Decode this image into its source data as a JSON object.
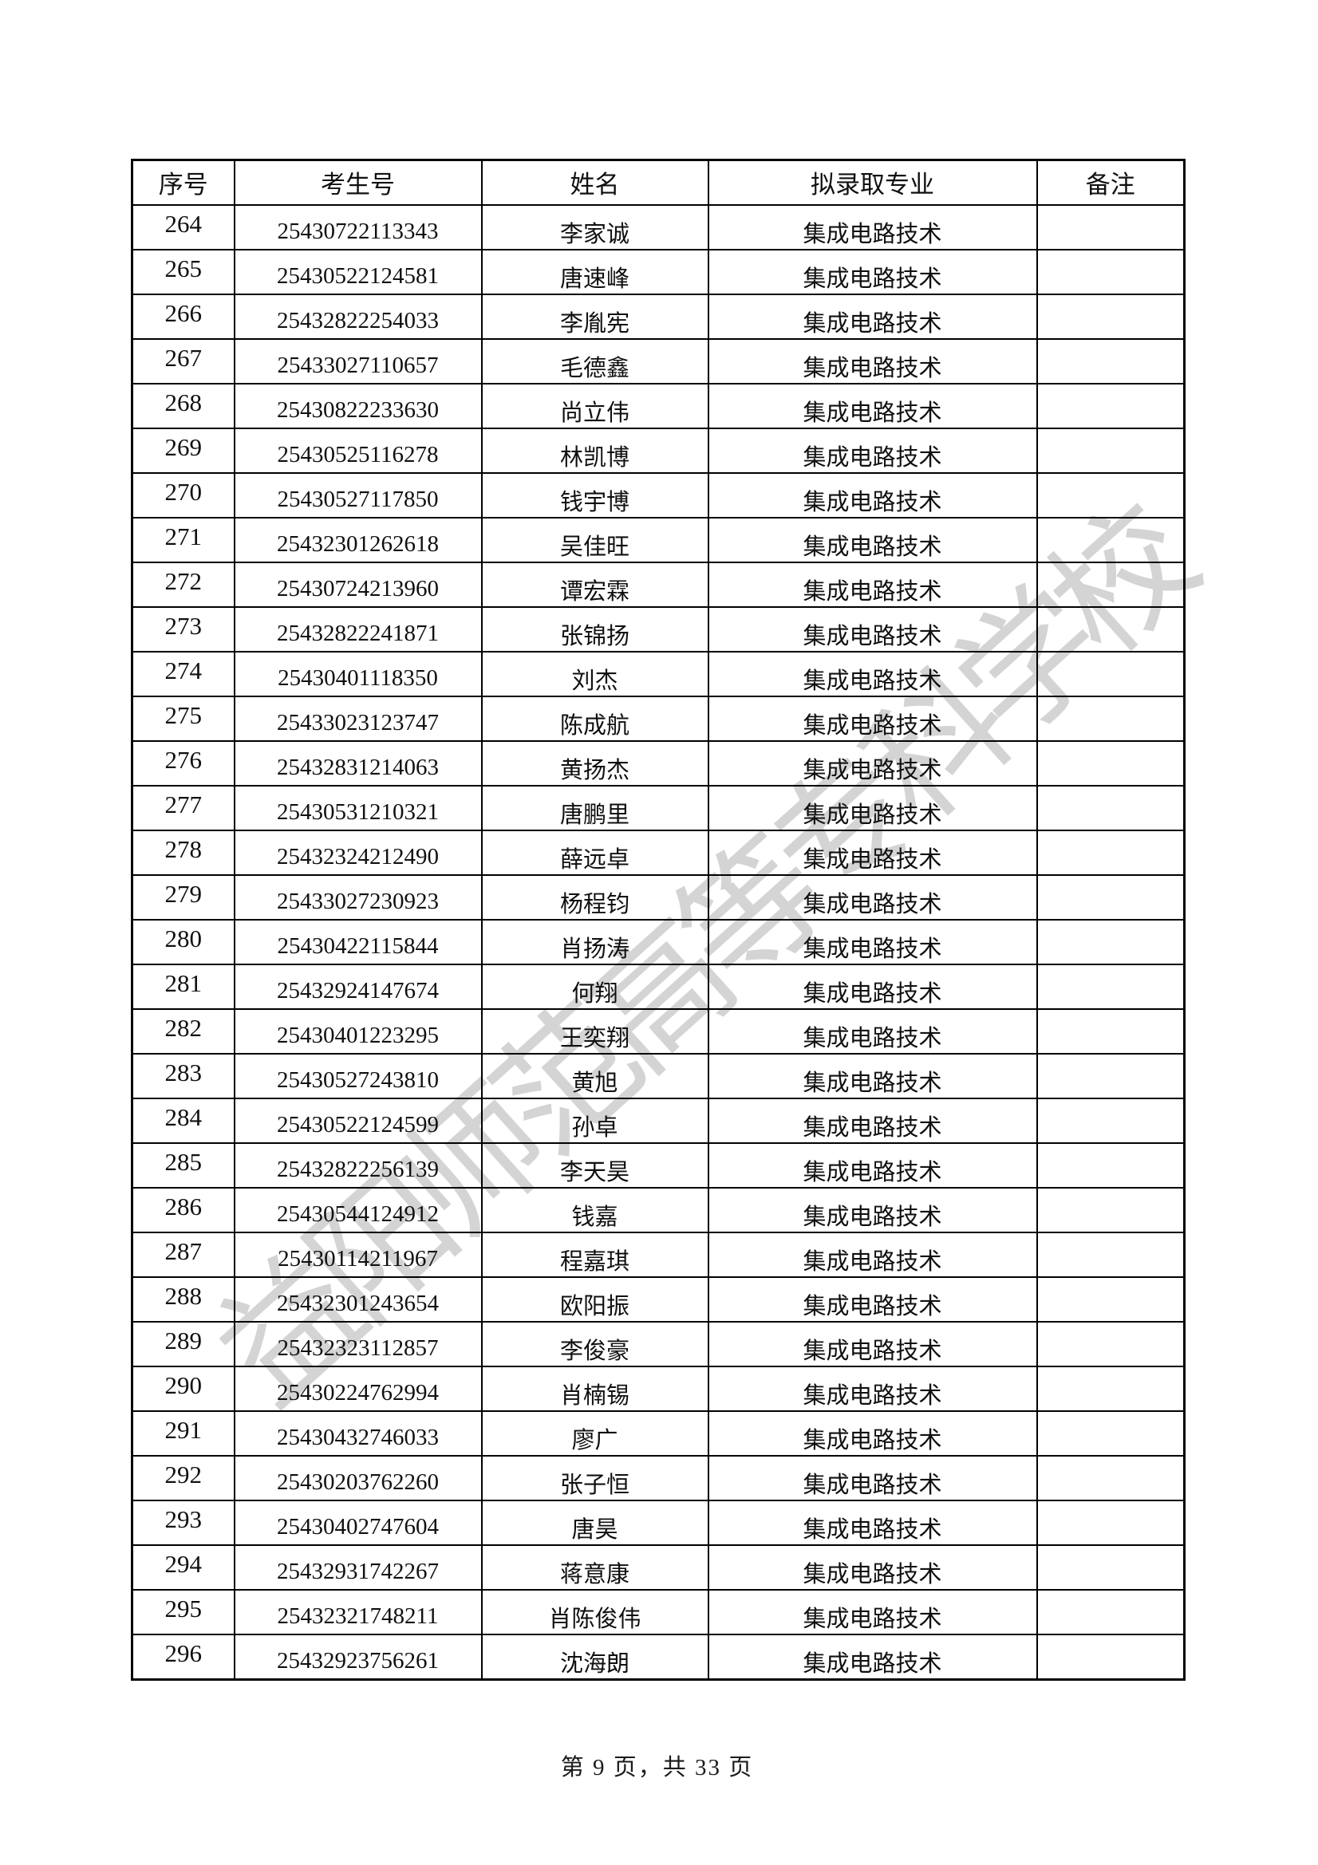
{
  "page": {
    "watermark": "益阳师范高等专科学校",
    "footer": "第 9 页，共 33 页"
  },
  "table": {
    "headers": [
      "序号",
      "考生号",
      "姓名",
      "拟录取专业",
      "备注"
    ],
    "rows": [
      {
        "no": "264",
        "id": "25430722113343",
        "name": "李家诚",
        "major": "集成电路技术",
        "note": ""
      },
      {
        "no": "265",
        "id": "25430522124581",
        "name": "唐速峰",
        "major": "集成电路技术",
        "note": ""
      },
      {
        "no": "266",
        "id": "25432822254033",
        "name": "李胤宪",
        "major": "集成电路技术",
        "note": ""
      },
      {
        "no": "267",
        "id": "25433027110657",
        "name": "毛德鑫",
        "major": "集成电路技术",
        "note": ""
      },
      {
        "no": "268",
        "id": "25430822233630",
        "name": "尚立伟",
        "major": "集成电路技术",
        "note": ""
      },
      {
        "no": "269",
        "id": "25430525116278",
        "name": "林凯博",
        "major": "集成电路技术",
        "note": ""
      },
      {
        "no": "270",
        "id": "25430527117850",
        "name": "钱宇博",
        "major": "集成电路技术",
        "note": ""
      },
      {
        "no": "271",
        "id": "25432301262618",
        "name": "吴佳旺",
        "major": "集成电路技术",
        "note": ""
      },
      {
        "no": "272",
        "id": "25430724213960",
        "name": "谭宏霖",
        "major": "集成电路技术",
        "note": ""
      },
      {
        "no": "273",
        "id": "25432822241871",
        "name": "张锦扬",
        "major": "集成电路技术",
        "note": ""
      },
      {
        "no": "274",
        "id": "25430401118350",
        "name": "刘杰",
        "major": "集成电路技术",
        "note": ""
      },
      {
        "no": "275",
        "id": "25433023123747",
        "name": "陈成航",
        "major": "集成电路技术",
        "note": ""
      },
      {
        "no": "276",
        "id": "25432831214063",
        "name": "黄扬杰",
        "major": "集成电路技术",
        "note": ""
      },
      {
        "no": "277",
        "id": "25430531210321",
        "name": "唐鹏里",
        "major": "集成电路技术",
        "note": ""
      },
      {
        "no": "278",
        "id": "25432324212490",
        "name": "薛远卓",
        "major": "集成电路技术",
        "note": ""
      },
      {
        "no": "279",
        "id": "25433027230923",
        "name": "杨程钧",
        "major": "集成电路技术",
        "note": ""
      },
      {
        "no": "280",
        "id": "25430422115844",
        "name": "肖扬涛",
        "major": "集成电路技术",
        "note": ""
      },
      {
        "no": "281",
        "id": "25432924147674",
        "name": "何翔",
        "major": "集成电路技术",
        "note": ""
      },
      {
        "no": "282",
        "id": "25430401223295",
        "name": "王奕翔",
        "major": "集成电路技术",
        "note": ""
      },
      {
        "no": "283",
        "id": "25430527243810",
        "name": "黄旭",
        "major": "集成电路技术",
        "note": ""
      },
      {
        "no": "284",
        "id": "25430522124599",
        "name": "孙卓",
        "major": "集成电路技术",
        "note": ""
      },
      {
        "no": "285",
        "id": "25432822256139",
        "name": "李天昊",
        "major": "集成电路技术",
        "note": ""
      },
      {
        "no": "286",
        "id": "25430544124912",
        "name": "钱嘉",
        "major": "集成电路技术",
        "note": ""
      },
      {
        "no": "287",
        "id": "25430114211967",
        "name": "程嘉琪",
        "major": "集成电路技术",
        "note": ""
      },
      {
        "no": "288",
        "id": "25432301243654",
        "name": "欧阳振",
        "major": "集成电路技术",
        "note": ""
      },
      {
        "no": "289",
        "id": "25432323112857",
        "name": "李俊豪",
        "major": "集成电路技术",
        "note": ""
      },
      {
        "no": "290",
        "id": "25430224762994",
        "name": "肖楠锡",
        "major": "集成电路技术",
        "note": ""
      },
      {
        "no": "291",
        "id": "25430432746033",
        "name": "廖广",
        "major": "集成电路技术",
        "note": ""
      },
      {
        "no": "292",
        "id": "25430203762260",
        "name": "张子恒",
        "major": "集成电路技术",
        "note": ""
      },
      {
        "no": "293",
        "id": "25430402747604",
        "name": "唐昊",
        "major": "集成电路技术",
        "note": ""
      },
      {
        "no": "294",
        "id": "25432931742267",
        "name": "蒋意康",
        "major": "集成电路技术",
        "note": ""
      },
      {
        "no": "295",
        "id": "25432321748211",
        "name": "肖陈俊伟",
        "major": "集成电路技术",
        "note": ""
      },
      {
        "no": "296",
        "id": "25432923756261",
        "name": "沈海朗",
        "major": "集成电路技术",
        "note": ""
      }
    ]
  }
}
